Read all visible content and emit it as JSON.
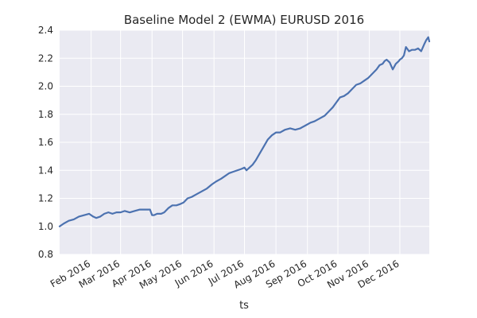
{
  "chart_data": {
    "type": "line",
    "title": "Baseline Model 2 (EWMA) EURUSD 2016",
    "xlabel": "ts",
    "ylabel": "",
    "x_axis_type": "date",
    "xlim": [
      "2016-01-01",
      "2016-12-30"
    ],
    "ylim": [
      0.8,
      2.4
    ],
    "yticks": [
      0.8,
      1.0,
      1.2,
      1.4,
      1.6,
      1.8,
      2.0,
      2.2,
      2.4
    ],
    "ytick_labels": [
      "0.8",
      "1.0",
      "1.2",
      "1.4",
      "1.6",
      "1.8",
      "2.0",
      "2.2",
      "2.4"
    ],
    "xticks": [
      "2016-02-01",
      "2016-03-01",
      "2016-04-01",
      "2016-05-01",
      "2016-06-01",
      "2016-07-01",
      "2016-08-01",
      "2016-09-01",
      "2016-10-01",
      "2016-11-01",
      "2016-12-01"
    ],
    "xtick_labels": [
      "Feb 2016",
      "Mar 2016",
      "Apr 2016",
      "May 2016",
      "Jun 2016",
      "Jul 2016",
      "Aug 2016",
      "Sep 2016",
      "Oct 2016",
      "Nov 2016",
      "Dec 2016"
    ],
    "grid": true,
    "background_color": "#eaeaf2",
    "grid_color": "#ffffff",
    "line_color": "#4c72b0",
    "series": [
      {
        "x": [
          "2016-01-01",
          "2016-01-05",
          "2016-01-10",
          "2016-01-15",
          "2016-01-20",
          "2016-01-25",
          "2016-01-30",
          "2016-02-03",
          "2016-02-06",
          "2016-02-10",
          "2016-02-14",
          "2016-02-18",
          "2016-02-22",
          "2016-02-26",
          "2016-03-01",
          "2016-03-05",
          "2016-03-10",
          "2016-03-15",
          "2016-03-20",
          "2016-03-25",
          "2016-03-30",
          "2016-04-01",
          "2016-04-03",
          "2016-04-06",
          "2016-04-10",
          "2016-04-13",
          "2016-04-17",
          "2016-04-21",
          "2016-04-25",
          "2016-04-29",
          "2016-05-02",
          "2016-05-06",
          "2016-05-10",
          "2016-05-15",
          "2016-05-20",
          "2016-05-25",
          "2016-05-30",
          "2016-06-03",
          "2016-06-08",
          "2016-06-12",
          "2016-06-16",
          "2016-06-20",
          "2016-06-24",
          "2016-06-28",
          "2016-07-01",
          "2016-07-03",
          "2016-07-06",
          "2016-07-09",
          "2016-07-12",
          "2016-07-16",
          "2016-07-20",
          "2016-07-24",
          "2016-07-28",
          "2016-08-01",
          "2016-08-05",
          "2016-08-10",
          "2016-08-15",
          "2016-08-20",
          "2016-08-25",
          "2016-08-30",
          "2016-09-04",
          "2016-09-08",
          "2016-09-13",
          "2016-09-18",
          "2016-09-22",
          "2016-09-26",
          "2016-09-30",
          "2016-10-03",
          "2016-10-07",
          "2016-10-11",
          "2016-10-15",
          "2016-10-19",
          "2016-10-23",
          "2016-10-27",
          "2016-10-31",
          "2016-11-04",
          "2016-11-08",
          "2016-11-11",
          "2016-11-14",
          "2016-11-16",
          "2016-11-18",
          "2016-11-21",
          "2016-11-24",
          "2016-11-27",
          "2016-11-30",
          "2016-12-01",
          "2016-12-03",
          "2016-12-05",
          "2016-12-07",
          "2016-12-10",
          "2016-12-13",
          "2016-12-16",
          "2016-12-19",
          "2016-12-22",
          "2016-12-25",
          "2016-12-27",
          "2016-12-29",
          "2016-12-30"
        ],
        "y": [
          1.0,
          1.02,
          1.04,
          1.05,
          1.07,
          1.08,
          1.09,
          1.07,
          1.06,
          1.07,
          1.09,
          1.1,
          1.09,
          1.1,
          1.1,
          1.11,
          1.1,
          1.11,
          1.12,
          1.12,
          1.12,
          1.08,
          1.08,
          1.09,
          1.09,
          1.1,
          1.13,
          1.15,
          1.15,
          1.16,
          1.17,
          1.2,
          1.21,
          1.23,
          1.25,
          1.27,
          1.3,
          1.32,
          1.34,
          1.36,
          1.38,
          1.39,
          1.4,
          1.41,
          1.42,
          1.4,
          1.42,
          1.44,
          1.47,
          1.52,
          1.57,
          1.62,
          1.65,
          1.67,
          1.67,
          1.69,
          1.7,
          1.69,
          1.7,
          1.72,
          1.74,
          1.75,
          1.77,
          1.79,
          1.82,
          1.85,
          1.89,
          1.92,
          1.93,
          1.95,
          1.98,
          2.01,
          2.02,
          2.04,
          2.06,
          2.09,
          2.12,
          2.15,
          2.16,
          2.18,
          2.19,
          2.17,
          2.12,
          2.16,
          2.18,
          2.19,
          2.2,
          2.22,
          2.28,
          2.25,
          2.26,
          2.26,
          2.27,
          2.25,
          2.3,
          2.33,
          2.35,
          2.32
        ]
      }
    ]
  }
}
